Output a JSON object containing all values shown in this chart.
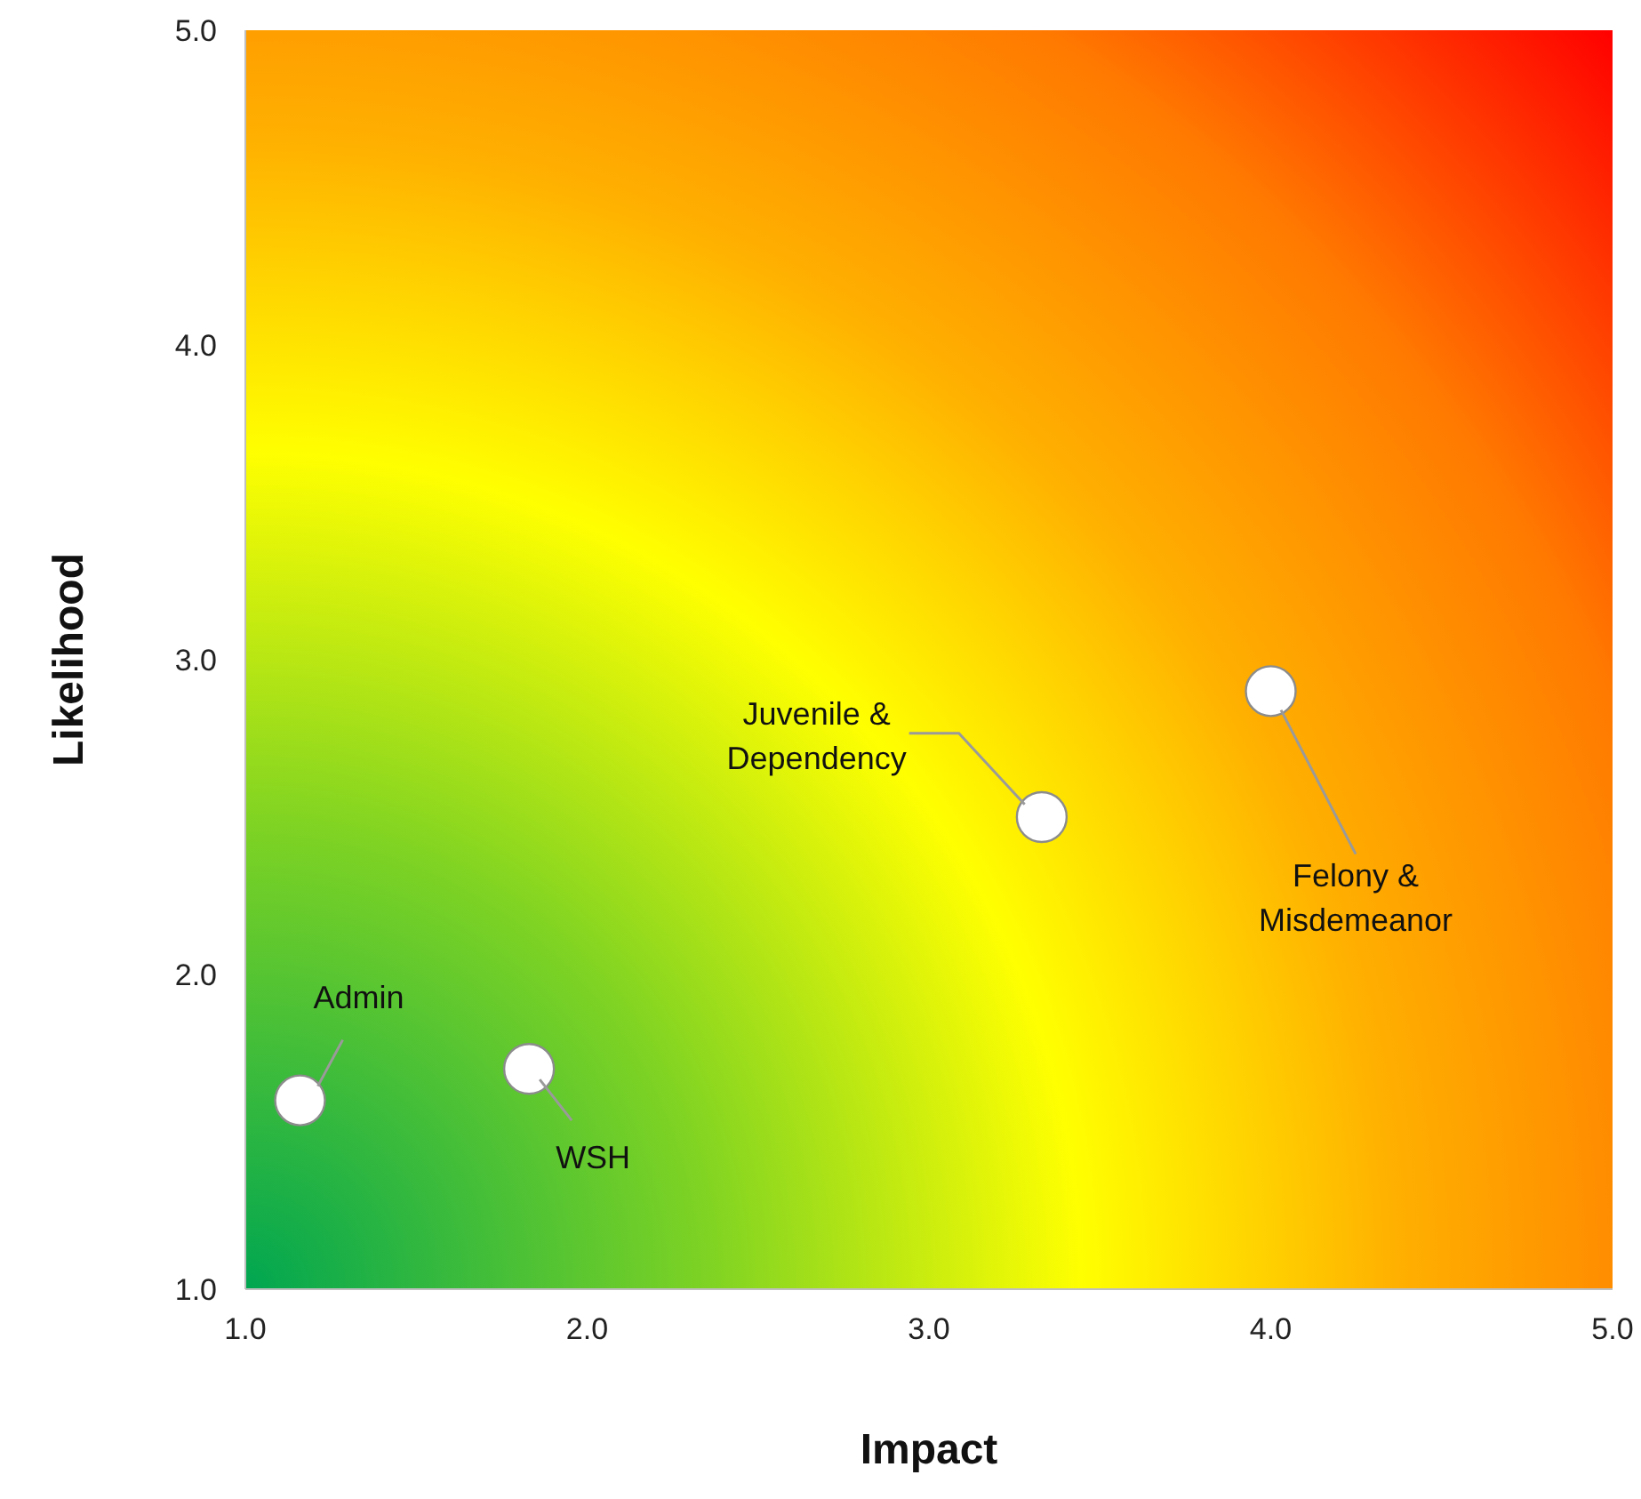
{
  "chart_data": {
    "type": "scatter",
    "xlabel": "Impact",
    "ylabel": "Likelihood",
    "x": [
      1.16,
      1.83,
      3.33,
      4.0
    ],
    "values": [
      1.6,
      1.7,
      2.5,
      2.9
    ],
    "color": "#ffffff",
    "marker": "circle",
    "grid": false,
    "legend": false,
    "xlim": [
      1,
      5
    ],
    "ylim": [
      1,
      5
    ],
    "xticks": [
      {
        "value": 1,
        "label": "1.0"
      },
      {
        "value": 2,
        "label": "2.0"
      },
      {
        "value": 3,
        "label": "3.0"
      },
      {
        "value": 4,
        "label": "4.0"
      },
      {
        "value": 5,
        "label": "5.0"
      }
    ],
    "yticks": [
      {
        "value": 1,
        "label": "1.0"
      },
      {
        "value": 2,
        "label": "2.0"
      },
      {
        "value": 3,
        "label": "3.0"
      },
      {
        "value": 4,
        "label": "4.0"
      },
      {
        "value": 5,
        "label": "5.0"
      }
    ],
    "annotations": [
      {
        "text": "Admin",
        "x": 1.16,
        "y": 1.6
      },
      {
        "text": "WSH",
        "x": 1.83,
        "y": 1.7
      },
      {
        "text": "Juvenile &\nDependency",
        "x": 3.28,
        "y": 2.54
      },
      {
        "text": "Felony &\nMisdemeanor",
        "x": 4.03,
        "y": 2.84
      }
    ]
  }
}
